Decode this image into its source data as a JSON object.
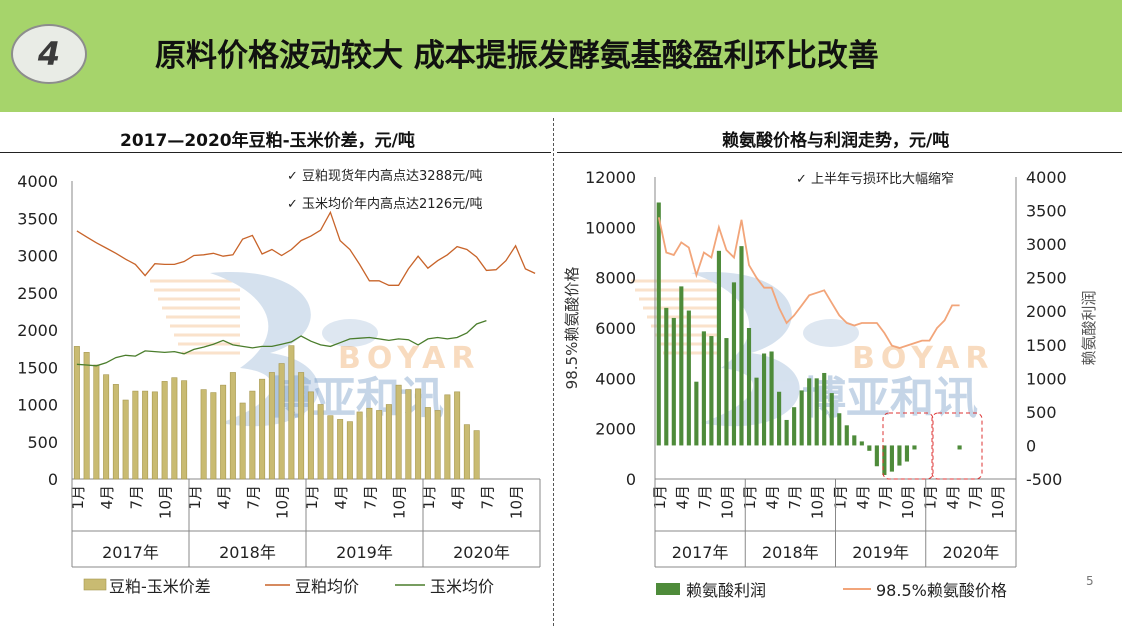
{
  "header": {
    "badge": "4",
    "title": "原料价格波动较大 成本提振发酵氨基酸盈利环比改善"
  },
  "page_number": "5",
  "colors": {
    "header_bg": "#a6d46b",
    "bar_left": "#c9bb72",
    "bar_right": "#4e8b3a",
    "soy_line": "#c8642a",
    "corn_line": "#4a7d2c",
    "lysine_line": "#f2a57a"
  },
  "chart_data": [
    {
      "type": "bar+line",
      "title": "2017—2020年豆粕-玉米价差，元/吨",
      "ylim": [
        0,
        4000
      ],
      "yticks": [
        0,
        500,
        1000,
        1500,
        2000,
        2500,
        3000,
        3500,
        4000
      ],
      "x_tick_labels": [
        "1月",
        "4月",
        "7月",
        "10月",
        "1月",
        "4月",
        "7月",
        "10月",
        "1月",
        "4月",
        "7月",
        "10月",
        "1月",
        "4月",
        "7月",
        "10月"
      ],
      "year_labels": [
        "2017年",
        "2018年",
        "2019年",
        "2020年"
      ],
      "annotations": [
        "✓  豆粕现货年内高点达3288元/吨",
        "✓  玉米均价年内高点达2126元/吨"
      ],
      "series": [
        {
          "name": "豆粕-玉米价差",
          "kind": "bar",
          "values": [
            1780,
            1700,
            1530,
            1400,
            1270,
            1060,
            1180,
            1180,
            1170,
            1310,
            1360,
            1320,
            null,
            1200,
            1160,
            1260,
            1430,
            1020,
            1180,
            1340,
            1430,
            1550,
            1790,
            1430,
            1170,
            1000,
            850,
            800,
            770,
            900,
            950,
            920,
            1000,
            1260,
            1200,
            1210,
            960,
            920,
            1130,
            1170,
            730,
            650,
            null,
            null,
            null,
            null,
            null,
            null
          ]
        },
        {
          "name": "豆粕均价",
          "kind": "line",
          "values": [
            3330,
            3250,
            3170,
            3100,
            3030,
            2950,
            2880,
            2730,
            2890,
            2880,
            2880,
            2920,
            3000,
            3010,
            3030,
            2990,
            3010,
            3220,
            3270,
            3020,
            3080,
            3000,
            3080,
            3200,
            3260,
            3340,
            3580,
            3200,
            3080,
            2880,
            2660,
            2660,
            2600,
            2600,
            2820,
            2990,
            2830,
            2930,
            3010,
            3120,
            3080,
            2980,
            2800,
            2810,
            2930,
            3130,
            2820,
            2760
          ]
        },
        {
          "name": "玉米均价",
          "kind": "line",
          "values": [
            1540,
            1530,
            1520,
            1560,
            1630,
            1660,
            1650,
            1720,
            1710,
            1700,
            1710,
            1680,
            1740,
            1770,
            1810,
            1860,
            1800,
            1780,
            1760,
            1780,
            1780,
            1810,
            1840,
            1920,
            1850,
            1800,
            1780,
            1830,
            1880,
            1890,
            1900,
            1880,
            1860,
            1880,
            1870,
            1800,
            1880,
            1900,
            1880,
            1900,
            1960,
            2080,
            2126
          ]
        }
      ],
      "legend": [
        "豆粕-玉米价差",
        "豆粕均价",
        "玉米均价"
      ]
    },
    {
      "type": "bar+line",
      "title": "赖氨酸价格与利润走势，元/吨",
      "ylabel": "98.5%赖氨酸价格",
      "ylabel_right": "赖氨酸利润",
      "ylim": [
        0,
        12000
      ],
      "yticks": [
        0,
        2000,
        4000,
        6000,
        8000,
        10000,
        12000
      ],
      "ylim_right": [
        -500,
        4000
      ],
      "yticks_right": [
        -500,
        0,
        500,
        1000,
        1500,
        2000,
        2500,
        3000,
        3500,
        4000
      ],
      "x_tick_labels": [
        "1月",
        "4月",
        "7月",
        "10月",
        "1月",
        "4月",
        "7月",
        "10月",
        "1月",
        "4月",
        "7月",
        "10月",
        "1月",
        "4月",
        "7月",
        "10月"
      ],
      "year_labels": [
        "2017年",
        "2018年",
        "2019年",
        "2020年"
      ],
      "annotations": [
        "✓ 上半年亏损环比大幅缩窄"
      ],
      "series": [
        {
          "name": "赖氨酸利润",
          "kind": "bar",
          "values": [
            3620,
            2050,
            1900,
            2370,
            2010,
            950,
            1700,
            1630,
            2900,
            1600,
            2430,
            2970,
            1750,
            1010,
            1370,
            1400,
            800,
            380,
            570,
            820,
            1000,
            1000,
            1080,
            780,
            480,
            300,
            150,
            60,
            -80,
            -310,
            -440,
            -390,
            -300,
            -240,
            -60,
            null,
            null,
            null,
            null,
            null,
            -60,
            null,
            null,
            null,
            null,
            null,
            null,
            null
          ]
        },
        {
          "name": "98.5%赖氨酸价格",
          "kind": "line",
          "values": [
            10400,
            9000,
            8900,
            9400,
            9200,
            8100,
            9000,
            8800,
            10000,
            9100,
            8800,
            10300,
            8500,
            8000,
            7600,
            7600,
            6800,
            6200,
            6500,
            6900,
            7300,
            7400,
            7500,
            7000,
            6500,
            6200,
            6100,
            6200,
            6200,
            6200,
            5800,
            5300,
            5200,
            5300,
            5400,
            5500,
            5500,
            6000,
            6300,
            6900,
            6900
          ]
        }
      ],
      "legend": [
        "赖氨酸利润",
        "98.5%赖氨酸价格"
      ]
    }
  ]
}
